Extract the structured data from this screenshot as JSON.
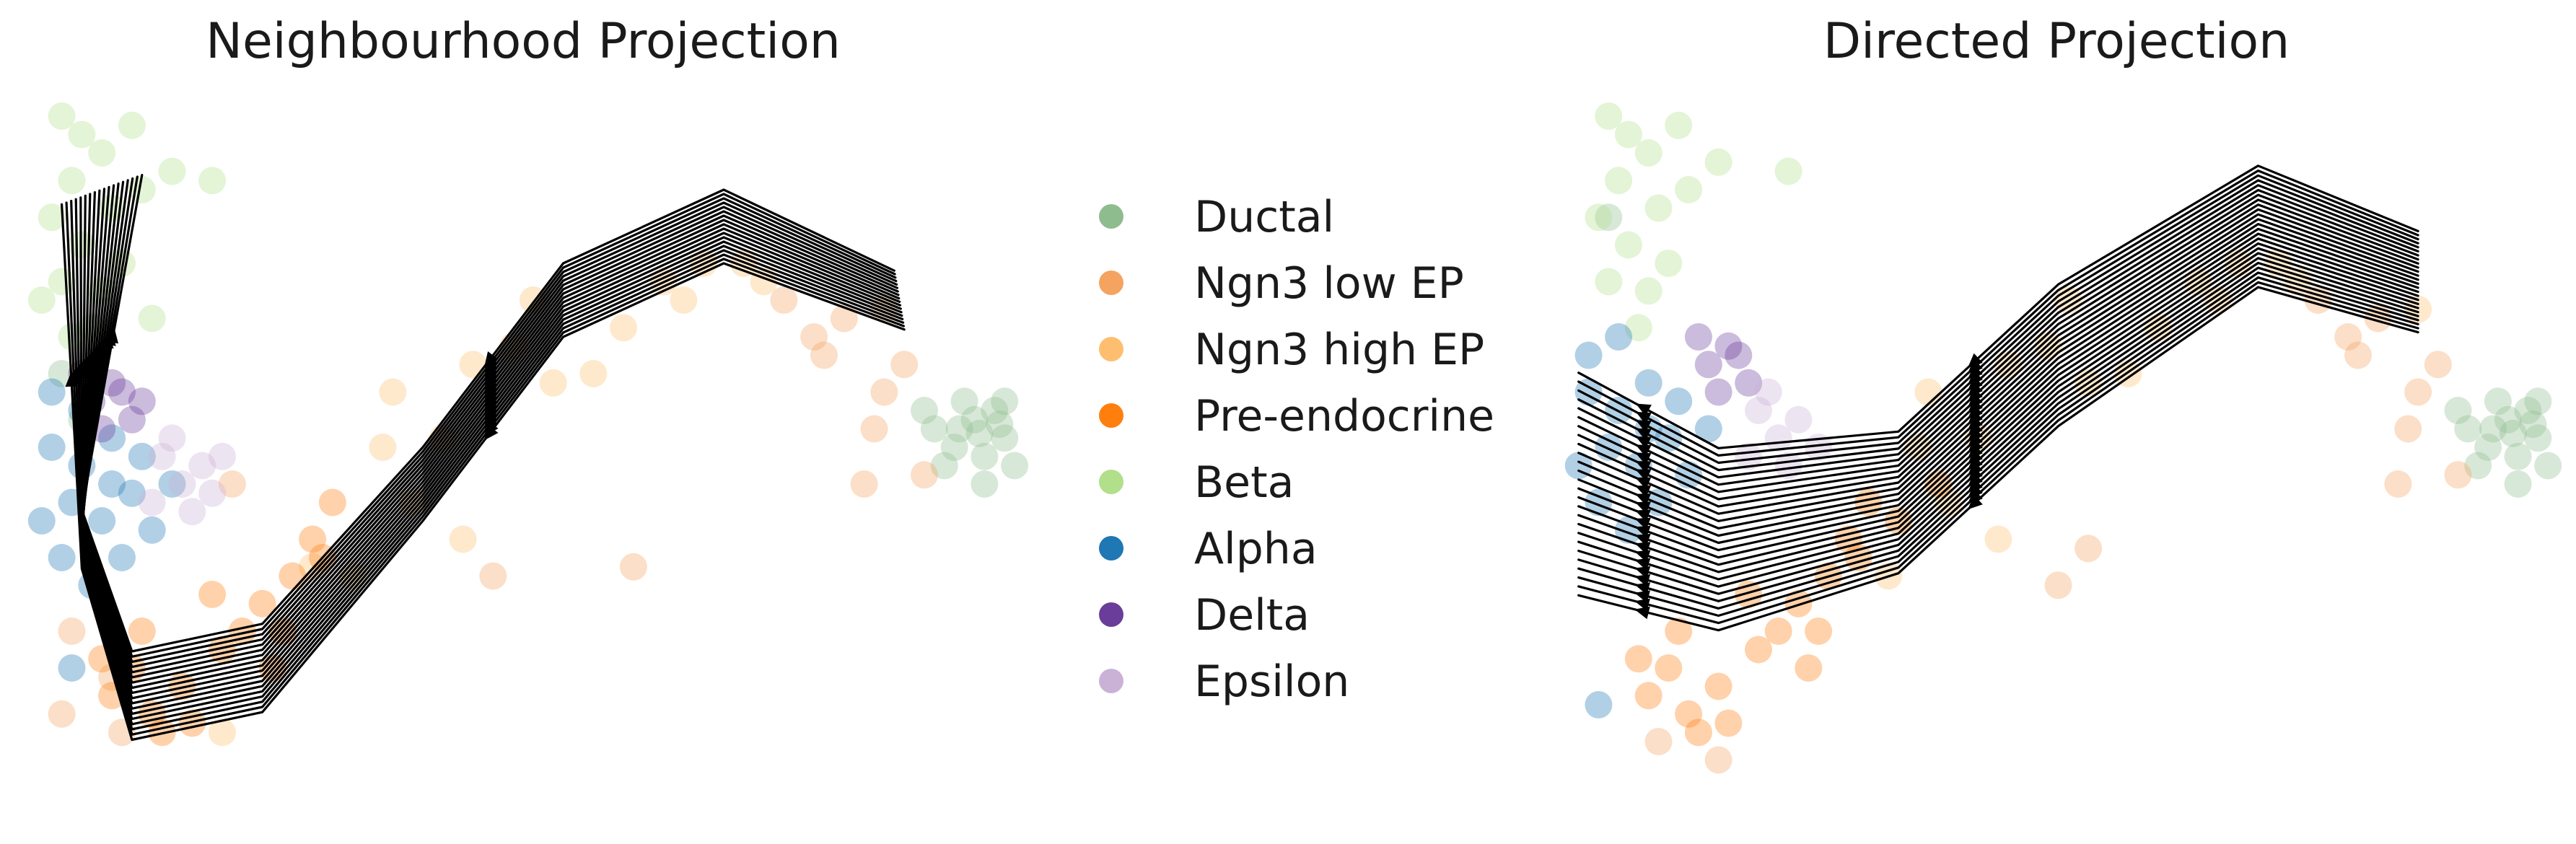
{
  "chart_data": [
    {
      "type": "scatter",
      "title": "Neighbourhood Projection",
      "xlabel": "",
      "ylabel": "",
      "xlim": [
        0,
        10
      ],
      "ylim": [
        0,
        8
      ],
      "grid": false,
      "axes_visible": false,
      "overlay": "velocity streamlines",
      "legend": "center",
      "series": [
        {
          "name": "Ductal",
          "points": [
            [
              9.1,
              4.2
            ],
            [
              9.3,
              4.0
            ],
            [
              9.5,
              4.3
            ],
            [
              9.6,
              3.9
            ],
            [
              9.8,
              4.1
            ],
            [
              9.4,
              4.5
            ],
            [
              9.7,
              4.4
            ],
            [
              9.2,
              3.8
            ],
            [
              9.9,
              3.8
            ],
            [
              9.0,
              4.4
            ],
            [
              9.6,
              3.6
            ],
            [
              9.8,
              4.5
            ],
            [
              9.35,
              4.2
            ],
            [
              9.55,
              4.15
            ],
            [
              9.75,
              4.25
            ],
            [
              0.4,
              4.8
            ],
            [
              0.6,
              4.3
            ]
          ]
        },
        {
          "name": "Ngn3 low EP",
          "points": [
            [
              8.6,
              4.6
            ],
            [
              8.8,
              4.9
            ],
            [
              8.2,
              5.4
            ],
            [
              8.0,
              5.0
            ],
            [
              8.5,
              4.2
            ],
            [
              9.0,
              3.7
            ],
            [
              8.4,
              3.6
            ],
            [
              7.6,
              5.6
            ],
            [
              7.9,
              5.2
            ],
            [
              0.5,
              2.0
            ],
            [
              0.9,
              1.5
            ],
            [
              1.0,
              0.9
            ],
            [
              4.7,
              2.6
            ],
            [
              6.1,
              2.7
            ],
            [
              2.1,
              3.6
            ],
            [
              0.4,
              1.1
            ]
          ]
        },
        {
          "name": "Ngn3 high EP",
          "points": [
            [
              6.0,
              5.3
            ],
            [
              6.4,
              5.8
            ],
            [
              6.8,
              6.0
            ],
            [
              7.2,
              6.0
            ],
            [
              5.7,
              4.8
            ],
            [
              5.3,
              4.7
            ],
            [
              4.9,
              5.1
            ],
            [
              5.1,
              5.6
            ],
            [
              4.5,
              4.9
            ],
            [
              3.6,
              4.0
            ],
            [
              3.9,
              3.4
            ],
            [
              3.3,
              2.6
            ],
            [
              4.2,
              4.1
            ],
            [
              6.6,
              5.6
            ],
            [
              7.4,
              5.8
            ],
            [
              2.9,
              2.7
            ],
            [
              4.4,
              3.0
            ],
            [
              3.7,
              4.6
            ],
            [
              8.6,
              5.5
            ],
            [
              2.0,
              0.9
            ]
          ]
        },
        {
          "name": "Pre-endocrine",
          "points": [
            [
              0.9,
              1.3
            ],
            [
              1.3,
              1.1
            ],
            [
              1.6,
              1.4
            ],
            [
              2.0,
              1.8
            ],
            [
              2.4,
              2.3
            ],
            [
              2.7,
              2.6
            ],
            [
              1.1,
              1.6
            ],
            [
              1.7,
              1.0
            ],
            [
              2.2,
              2.0
            ],
            [
              2.9,
              3.0
            ],
            [
              3.1,
              3.4
            ],
            [
              1.4,
              0.9
            ],
            [
              0.8,
              1.7
            ],
            [
              2.5,
              1.6
            ],
            [
              1.9,
              2.4
            ],
            [
              1.2,
              2.0
            ],
            [
              2.6,
              2.0
            ],
            [
              3.0,
              2.8
            ]
          ]
        },
        {
          "name": "Beta",
          "points": [
            [
              0.4,
              7.6
            ],
            [
              0.6,
              7.4
            ],
            [
              0.8,
              7.2
            ],
            [
              0.5,
              6.9
            ],
            [
              0.9,
              6.6
            ],
            [
              0.6,
              6.2
            ],
            [
              0.4,
              5.8
            ],
            [
              0.8,
              5.7
            ],
            [
              1.0,
              6.0
            ],
            [
              1.2,
              6.8
            ],
            [
              1.1,
              7.5
            ],
            [
              0.3,
              6.5
            ],
            [
              0.7,
              5.3
            ],
            [
              1.5,
              7.0
            ],
            [
              1.9,
              6.9
            ],
            [
              0.5,
              5.2
            ],
            [
              0.2,
              5.6
            ],
            [
              1.3,
              5.4
            ]
          ]
        },
        {
          "name": "Alpha",
          "points": [
            [
              0.3,
              4.0
            ],
            [
              0.6,
              3.8
            ],
            [
              0.9,
              4.1
            ],
            [
              1.2,
              3.9
            ],
            [
              0.5,
              3.4
            ],
            [
              0.8,
              3.2
            ],
            [
              1.1,
              3.5
            ],
            [
              0.4,
              2.8
            ],
            [
              0.7,
              2.5
            ],
            [
              1.3,
              3.1
            ],
            [
              0.3,
              4.6
            ],
            [
              0.6,
              4.4
            ],
            [
              0.9,
              3.6
            ],
            [
              0.5,
              1.6
            ],
            [
              1.0,
              2.8
            ],
            [
              1.5,
              3.6
            ],
            [
              0.2,
              3.2
            ]
          ]
        },
        {
          "name": "Delta",
          "points": [
            [
              0.7,
              4.5
            ],
            [
              0.9,
              4.7
            ],
            [
              1.1,
              4.3
            ],
            [
              0.8,
              4.2
            ],
            [
              1.0,
              4.6
            ],
            [
              0.6,
              4.8
            ],
            [
              1.2,
              4.5
            ]
          ]
        },
        {
          "name": "Epsilon",
          "points": [
            [
              1.4,
              3.9
            ],
            [
              1.6,
              3.6
            ],
            [
              1.8,
              3.8
            ],
            [
              1.3,
              3.4
            ],
            [
              1.7,
              3.3
            ],
            [
              1.5,
              4.1
            ],
            [
              1.9,
              3.5
            ],
            [
              2.0,
              3.9
            ]
          ]
        }
      ]
    },
    {
      "type": "scatter",
      "title": "Directed Projection",
      "xlabel": "",
      "ylabel": "",
      "xlim": [
        0,
        10
      ],
      "ylim": [
        0,
        8
      ],
      "grid": false,
      "axes_visible": false,
      "overlay": "velocity streamlines",
      "legend": "none",
      "series": [
        {
          "name": "Ductal",
          "points": [
            [
              9.1,
              4.2
            ],
            [
              9.3,
              4.0
            ],
            [
              9.5,
              4.3
            ],
            [
              9.6,
              3.9
            ],
            [
              9.8,
              4.1
            ],
            [
              9.4,
              4.5
            ],
            [
              9.7,
              4.4
            ],
            [
              9.2,
              3.8
            ],
            [
              9.9,
              3.8
            ],
            [
              9.0,
              4.4
            ],
            [
              9.6,
              3.6
            ],
            [
              9.8,
              4.5
            ],
            [
              9.35,
              4.2
            ],
            [
              9.55,
              4.15
            ],
            [
              9.75,
              4.25
            ],
            [
              0.5,
              6.5
            ]
          ]
        },
        {
          "name": "Ngn3 low EP",
          "points": [
            [
              8.6,
              4.6
            ],
            [
              8.8,
              4.9
            ],
            [
              8.2,
              5.4
            ],
            [
              8.0,
              5.0
            ],
            [
              8.5,
              4.2
            ],
            [
              9.0,
              3.7
            ],
            [
              8.4,
              3.6
            ],
            [
              7.6,
              5.6
            ],
            [
              7.9,
              5.2
            ],
            [
              1.0,
              0.8
            ],
            [
              1.6,
              0.6
            ],
            [
              5.3,
              2.9
            ],
            [
              5.0,
              2.5
            ]
          ]
        },
        {
          "name": "Ngn3 high EP",
          "points": [
            [
              6.0,
              5.3
            ],
            [
              6.4,
              5.8
            ],
            [
              6.8,
              6.0
            ],
            [
              7.2,
              6.0
            ],
            [
              5.7,
              4.8
            ],
            [
              5.3,
              4.7
            ],
            [
              4.9,
              5.1
            ],
            [
              5.1,
              5.6
            ],
            [
              4.5,
              4.9
            ],
            [
              3.6,
              4.0
            ],
            [
              3.9,
              3.4
            ],
            [
              3.3,
              2.6
            ],
            [
              4.2,
              4.1
            ],
            [
              6.6,
              5.6
            ],
            [
              7.4,
              5.8
            ],
            [
              8.6,
              5.5
            ],
            [
              4.4,
              3.0
            ],
            [
              3.7,
              4.6
            ]
          ]
        },
        {
          "name": "Pre-endocrine",
          "points": [
            [
              0.9,
              1.3
            ],
            [
              1.3,
              1.1
            ],
            [
              1.6,
              1.4
            ],
            [
              2.0,
              1.8
            ],
            [
              2.4,
              2.3
            ],
            [
              2.7,
              2.6
            ],
            [
              1.1,
              1.6
            ],
            [
              1.7,
              1.0
            ],
            [
              2.2,
              2.0
            ],
            [
              2.9,
              3.0
            ],
            [
              3.1,
              3.4
            ],
            [
              1.4,
              0.9
            ],
            [
              0.8,
              1.7
            ],
            [
              2.5,
              1.6
            ],
            [
              1.9,
              2.4
            ],
            [
              1.2,
              2.0
            ],
            [
              2.6,
              2.0
            ],
            [
              3.0,
              2.8
            ],
            [
              3.4,
              3.2
            ],
            [
              3.8,
              3.6
            ]
          ]
        },
        {
          "name": "Beta",
          "points": [
            [
              0.5,
              7.6
            ],
            [
              0.7,
              7.4
            ],
            [
              0.9,
              7.2
            ],
            [
              0.6,
              6.9
            ],
            [
              1.0,
              6.6
            ],
            [
              0.7,
              6.2
            ],
            [
              0.5,
              5.8
            ],
            [
              0.9,
              5.7
            ],
            [
              1.1,
              6.0
            ],
            [
              1.3,
              6.8
            ],
            [
              1.2,
              7.5
            ],
            [
              0.4,
              6.5
            ],
            [
              0.8,
              5.3
            ],
            [
              2.3,
              7.0
            ],
            [
              1.6,
              7.1
            ]
          ]
        },
        {
          "name": "Alpha",
          "points": [
            [
              0.3,
              4.6
            ],
            [
              0.6,
              4.4
            ],
            [
              0.9,
              4.7
            ],
            [
              1.2,
              4.5
            ],
            [
              0.5,
              4.0
            ],
            [
              0.8,
              3.8
            ],
            [
              1.1,
              4.1
            ],
            [
              0.4,
              3.4
            ],
            [
              0.7,
              3.1
            ],
            [
              1.3,
              3.7
            ],
            [
              0.3,
              5.0
            ],
            [
              0.6,
              5.2
            ],
            [
              0.9,
              4.2
            ],
            [
              1.0,
              3.4
            ],
            [
              1.5,
              4.2
            ],
            [
              0.2,
              3.8
            ],
            [
              0.4,
              1.2
            ]
          ]
        },
        {
          "name": "Delta",
          "points": [
            [
              1.5,
              4.9
            ],
            [
              1.7,
              5.1
            ],
            [
              1.9,
              4.7
            ],
            [
              1.6,
              4.6
            ],
            [
              1.8,
              5.0
            ],
            [
              1.4,
              5.2
            ]
          ]
        },
        {
          "name": "Epsilon",
          "points": [
            [
              2.0,
              4.4
            ],
            [
              2.2,
              4.1
            ],
            [
              2.4,
              4.3
            ],
            [
              1.9,
              3.9
            ],
            [
              2.3,
              3.8
            ],
            [
              2.1,
              4.6
            ],
            [
              2.6,
              4.0
            ]
          ]
        }
      ]
    }
  ],
  "legend": {
    "items": [
      {
        "label": "Ductal",
        "color": "#8fbc8f"
      },
      {
        "label": "Ngn3 low EP",
        "color": "#f4a460"
      },
      {
        "label": "Ngn3 high EP",
        "color": "#fdbf6f"
      },
      {
        "label": "Pre-endocrine",
        "color": "#ff7f0e"
      },
      {
        "label": "Beta",
        "color": "#b2df8a"
      },
      {
        "label": "Alpha",
        "color": "#1f77b4"
      },
      {
        "label": "Delta",
        "color": "#6a3d9a"
      },
      {
        "label": "Epsilon",
        "color": "#cab2d6"
      }
    ]
  },
  "style": {
    "streamline_color": "#000000",
    "point_opacity": 0.35,
    "background": "#ffffff"
  }
}
